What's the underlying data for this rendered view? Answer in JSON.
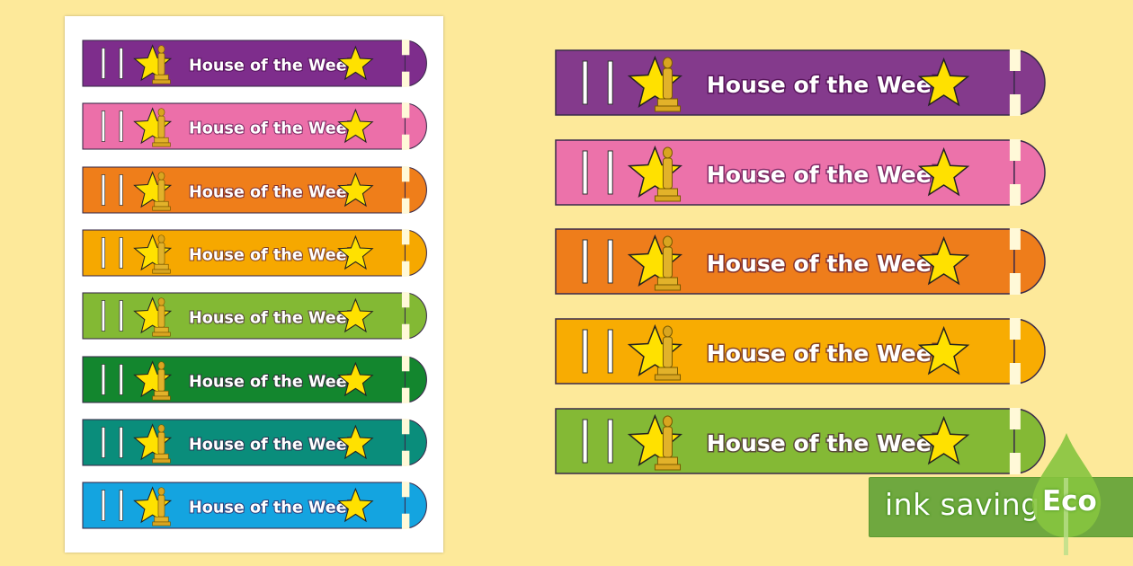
{
  "band_label": "House of the Week",
  "sheet_bands": [
    {
      "label": "House of the Week",
      "color": "#7e2d8c"
    },
    {
      "label": "House of the Week",
      "color": "#ec6fa9"
    },
    {
      "label": "House of the Week",
      "color": "#ef7e1a"
    },
    {
      "label": "House of the Week",
      "color": "#f6a800"
    },
    {
      "label": "House of the Week",
      "color": "#83b934"
    },
    {
      "label": "House of the Week",
      "color": "#13862e"
    },
    {
      "label": "House of the Week",
      "color": "#0a8d7b"
    },
    {
      "label": "House of the Week",
      "color": "#14a4e0"
    }
  ],
  "large_bands": [
    {
      "label": "House of the Week",
      "color": "#843a8c"
    },
    {
      "label": "House of the Week",
      "color": "#ec72aa"
    },
    {
      "label": "House of the Week",
      "color": "#ee7d1b"
    },
    {
      "label": "House of the Week",
      "color": "#f8ac02"
    },
    {
      "label": "House of the Week",
      "color": "#84b935"
    }
  ],
  "icons": {
    "star": "star-icon",
    "trophy": "trophy-icon",
    "leaf": "leaf-icon"
  },
  "colors": {
    "background": "#fde99a",
    "star": "#ffe100",
    "eco_green": "#6fa83f"
  },
  "eco_badge": {
    "text": "ink saving",
    "badge": "Eco"
  }
}
